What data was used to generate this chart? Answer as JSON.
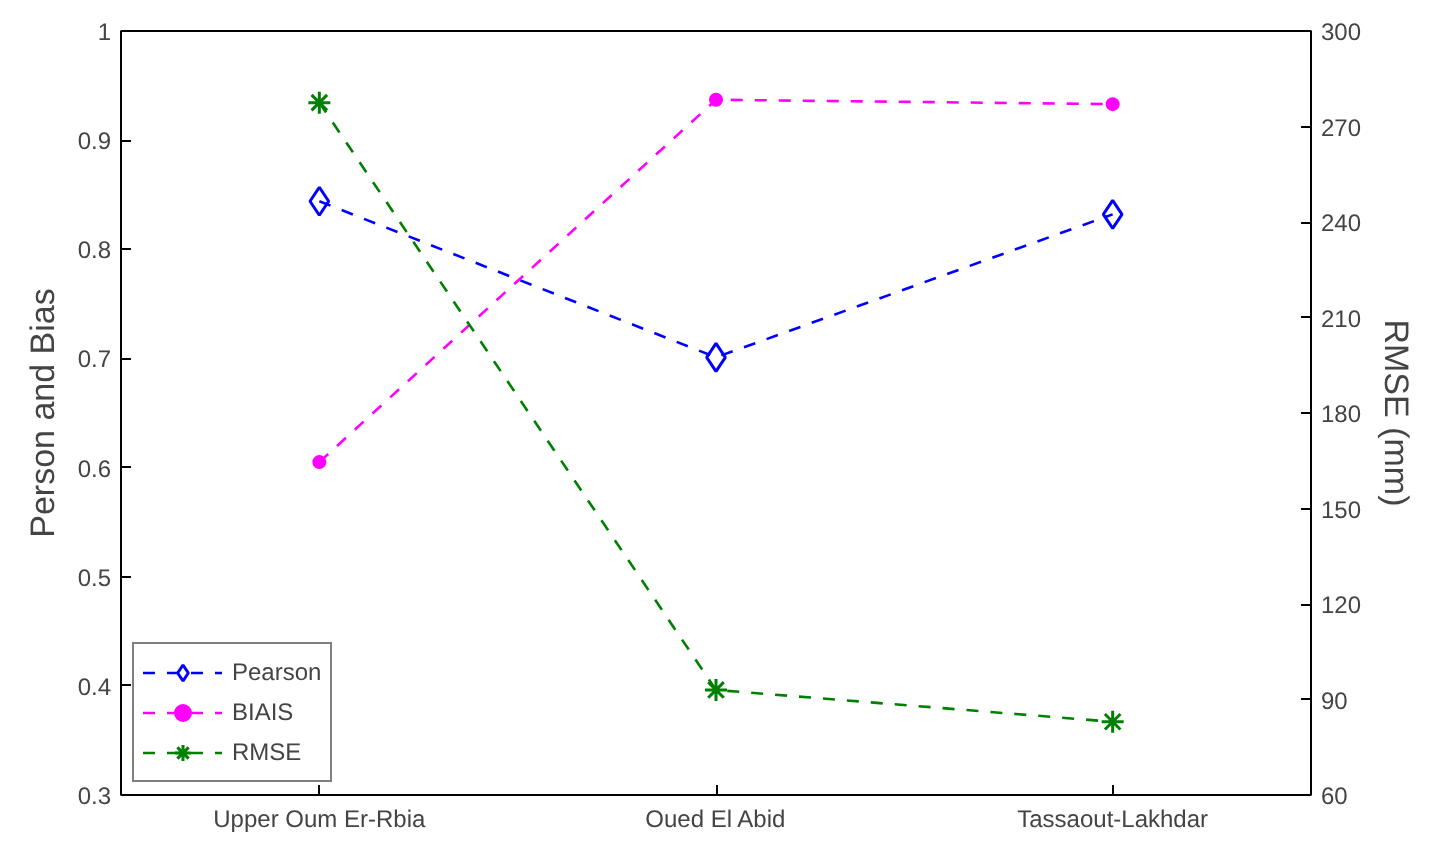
{
  "chart_data": {
    "type": "line",
    "ylabel": "Person and Bias",
    "y2label": "RMSE (mm)",
    "categories": [
      "Upper Oum Er-Rbia",
      "Oued El Abid",
      "Tassaout-Lakhdar"
    ],
    "series": [
      {
        "name": "Pearson",
        "color": "#0000ff",
        "values": [
          0.844,
          0.701,
          0.832
        ],
        "marker": "diamond"
      },
      {
        "name": "BIAIS",
        "color": "#ff00ff",
        "values": [
          0.605,
          0.937,
          0.933
        ],
        "marker": "circle"
      },
      {
        "name": "RMSE",
        "color": "#008000",
        "values": [
          277.5,
          93,
          83
        ],
        "marker": "cross",
        "axis": "y2"
      }
    ],
    "ylim": [
      0.3,
      1
    ],
    "yticks": [
      0.3,
      0.4,
      0.5,
      0.6,
      0.7,
      0.8,
      0.9,
      1
    ],
    "y2lim": [
      60,
      300
    ],
    "y2ticks": [
      60,
      90,
      120,
      150,
      180,
      210,
      240,
      270,
      300
    ],
    "line_style": "dashed",
    "legend": "bottom left",
    "grid": false
  }
}
